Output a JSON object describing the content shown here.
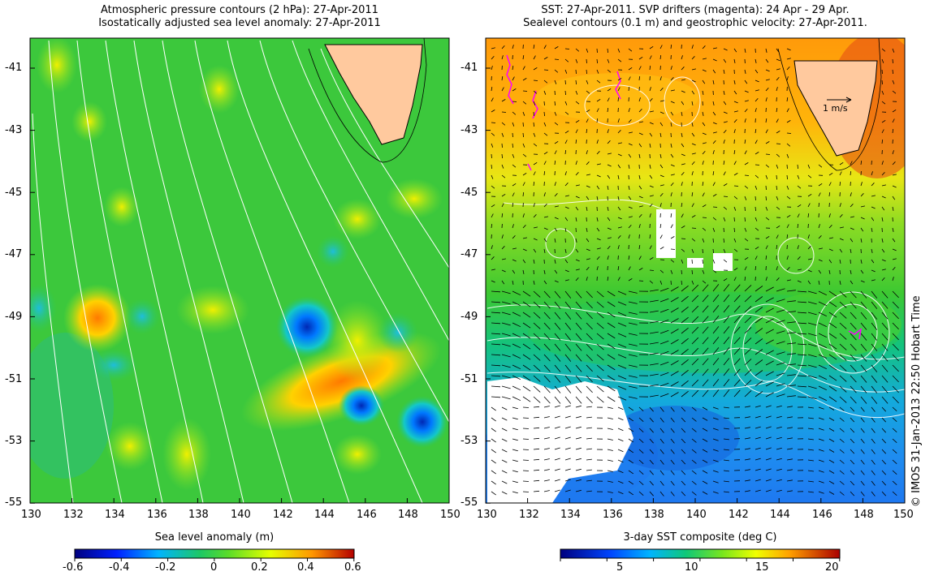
{
  "left_panel": {
    "title_line1": "Atmospheric pressure contours (2 hPa): 27-Apr-2011",
    "title_line2": "Isostatically adjusted sea level anomaly: 27-Apr-2011",
    "colorbar_label": "Sea level anomaly (m)",
    "colorbar_ticks": [
      "-0.6",
      "-0.4",
      "-0.2",
      "0",
      "0.2",
      "0.4",
      "0.6"
    ]
  },
  "right_panel": {
    "title_line1": "SST: 27-Apr-2011. SVP drifters (magenta): 24 Apr - 29 Apr.",
    "title_line2": "Sealevel contours (0.1 m) and geostrophic velocity: 27-Apr-2011.",
    "colorbar_label": "3-day SST composite (deg C)",
    "colorbar_ticks": [
      "5",
      "10",
      "15",
      "20"
    ],
    "velocity_scale_label": "1 m/s"
  },
  "lat_ticks": [
    "-41",
    "-43",
    "-45",
    "-47",
    "-49",
    "-51",
    "-53",
    "-55"
  ],
  "lon_ticks": [
    "130",
    "132",
    "134",
    "136",
    "138",
    "140",
    "142",
    "144",
    "146",
    "148",
    "150"
  ],
  "credit": "© IMOS 31-Jan-2013 22:50 Hobart Time",
  "colors": {
    "land": "#ffc99e",
    "sla_background": "#3fc63f",
    "sst_warm": "#ffa500",
    "sst_cool": "#1ea0e6",
    "drifter": "#ff00ff",
    "contour": "#ffffff"
  }
}
